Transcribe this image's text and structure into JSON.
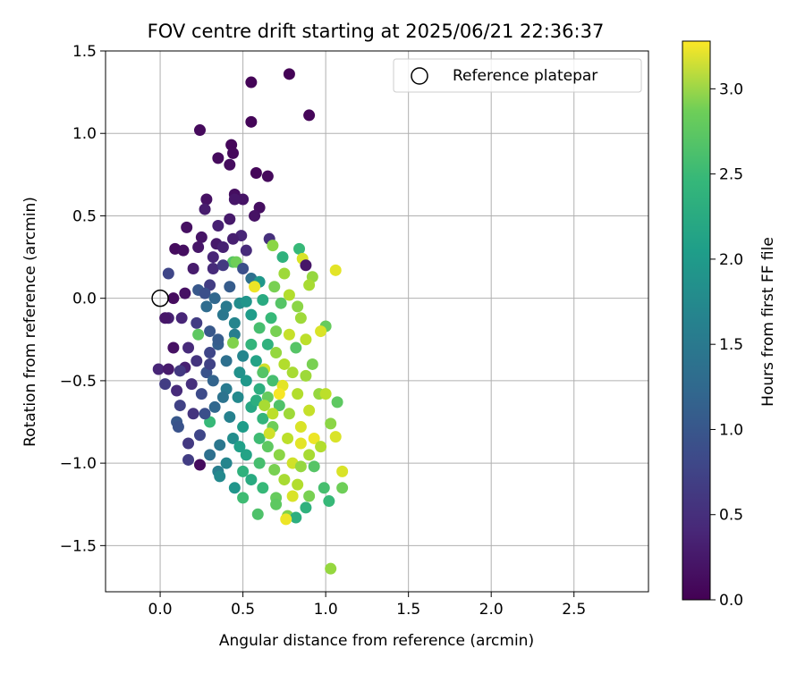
{
  "chart_data": {
    "type": "scatter",
    "title": "FOV centre drift starting at 2025/06/21 22:36:37",
    "xlabel": "Angular distance from reference (arcmin)",
    "ylabel": "Rotation from reference (arcmin)",
    "xlim": [
      -0.33,
      2.95
    ],
    "ylim": [
      -1.78,
      1.5
    ],
    "xticks": [
      0.0,
      0.5,
      1.0,
      1.5,
      2.0,
      2.5
    ],
    "xtick_labels": [
      "0.0",
      "0.5",
      "1.0",
      "1.5",
      "2.0",
      "2.5"
    ],
    "yticks": [
      1.5,
      1.0,
      0.5,
      0.0,
      -0.5,
      -1.0,
      -1.5
    ],
    "ytick_labels": [
      "1.5",
      "1.0",
      "0.5",
      "0.0",
      "−0.5",
      "−1.0",
      "−1.5"
    ],
    "grid": true,
    "legend": {
      "position": "top-right",
      "entries": [
        "Reference platepar"
      ]
    },
    "reference_point": {
      "name": "Reference platepar",
      "x": 0.0,
      "y": 0.0
    },
    "colorbar": {
      "label": "Hours from first FF file",
      "range": [
        0.0,
        3.28
      ],
      "ticks": [
        0.0,
        0.5,
        1.0,
        1.5,
        2.0,
        2.5,
        3.0
      ],
      "tick_labels": [
        "0.0",
        "0.5",
        "1.0",
        "1.5",
        "2.0",
        "2.5",
        "3.0"
      ],
      "colormap": "viridis"
    },
    "points": [
      {
        "x": 0.78,
        "y": 1.36,
        "t": 0.02
      },
      {
        "x": 0.55,
        "y": 1.31,
        "t": 0.03
      },
      {
        "x": 0.9,
        "y": 1.11,
        "t": 0.05
      },
      {
        "x": 0.55,
        "y": 1.07,
        "t": 0.04
      },
      {
        "x": 0.24,
        "y": 1.02,
        "t": 0.08
      },
      {
        "x": 0.43,
        "y": 0.93,
        "t": 0.06
      },
      {
        "x": 0.44,
        "y": 0.88,
        "t": 0.07
      },
      {
        "x": 0.35,
        "y": 0.85,
        "t": 0.09
      },
      {
        "x": 0.42,
        "y": 0.81,
        "t": 0.1
      },
      {
        "x": 0.58,
        "y": 0.76,
        "t": 0.06
      },
      {
        "x": 0.65,
        "y": 0.74,
        "t": 0.08
      },
      {
        "x": 0.45,
        "y": 0.63,
        "t": 0.12
      },
      {
        "x": 0.28,
        "y": 0.6,
        "t": 0.15
      },
      {
        "x": 0.5,
        "y": 0.6,
        "t": 0.18
      },
      {
        "x": 0.45,
        "y": 0.6,
        "t": 0.2
      },
      {
        "x": 0.6,
        "y": 0.55,
        "t": 0.12
      },
      {
        "x": 0.27,
        "y": 0.54,
        "t": 0.25
      },
      {
        "x": 0.57,
        "y": 0.5,
        "t": 0.16
      },
      {
        "x": 0.42,
        "y": 0.48,
        "t": 0.22
      },
      {
        "x": 0.16,
        "y": 0.43,
        "t": 0.14
      },
      {
        "x": 0.35,
        "y": 0.44,
        "t": 0.3
      },
      {
        "x": 0.25,
        "y": 0.37,
        "t": 0.18
      },
      {
        "x": 0.49,
        "y": 0.38,
        "t": 0.35
      },
      {
        "x": 0.44,
        "y": 0.36,
        "t": 0.28
      },
      {
        "x": 0.66,
        "y": 0.36,
        "t": 0.45
      },
      {
        "x": 0.34,
        "y": 0.33,
        "t": 0.22
      },
      {
        "x": 0.09,
        "y": 0.3,
        "t": 0.1
      },
      {
        "x": 0.14,
        "y": 0.29,
        "t": 0.12
      },
      {
        "x": 0.23,
        "y": 0.31,
        "t": 0.2
      },
      {
        "x": 0.38,
        "y": 0.31,
        "t": 0.3
      },
      {
        "x": 0.52,
        "y": 0.29,
        "t": 0.4
      },
      {
        "x": 0.32,
        "y": 0.25,
        "t": 0.35
      },
      {
        "x": 0.44,
        "y": 0.22,
        "t": 2.4
      },
      {
        "x": 0.46,
        "y": 0.22,
        "t": 2.55
      },
      {
        "x": 0.68,
        "y": 0.32,
        "t": 2.7
      },
      {
        "x": 0.84,
        "y": 0.3,
        "t": 2.2
      },
      {
        "x": 0.74,
        "y": 0.25,
        "t": 2.1
      },
      {
        "x": 0.86,
        "y": 0.24,
        "t": 3.1
      },
      {
        "x": 0.88,
        "y": 0.2,
        "t": 0.2
      },
      {
        "x": 0.2,
        "y": 0.18,
        "t": 0.25
      },
      {
        "x": 0.32,
        "y": 0.18,
        "t": 0.4
      },
      {
        "x": 0.38,
        "y": 0.2,
        "t": 0.55
      },
      {
        "x": 0.5,
        "y": 0.18,
        "t": 0.8
      },
      {
        "x": 0.55,
        "y": 0.12,
        "t": 1.2
      },
      {
        "x": 0.6,
        "y": 0.1,
        "t": 1.75
      },
      {
        "x": 0.75,
        "y": 0.15,
        "t": 2.8
      },
      {
        "x": 0.92,
        "y": 0.13,
        "t": 2.75
      },
      {
        "x": 1.06,
        "y": 0.17,
        "t": 3.15
      },
      {
        "x": 0.9,
        "y": 0.08,
        "t": 2.85
      },
      {
        "x": 0.05,
        "y": 0.15,
        "t": 0.7
      },
      {
        "x": 0.3,
        "y": 0.08,
        "t": 0.6
      },
      {
        "x": 0.42,
        "y": 0.07,
        "t": 0.95
      },
      {
        "x": 0.57,
        "y": 0.07,
        "t": 3.2
      },
      {
        "x": 0.69,
        "y": 0.07,
        "t": 2.6
      },
      {
        "x": 0.78,
        "y": 0.02,
        "t": 2.9
      },
      {
        "x": 0.05,
        "y": -0.12,
        "t": 0.3
      },
      {
        "x": 0.15,
        "y": 0.03,
        "t": 0.15
      },
      {
        "x": 0.23,
        "y": 0.05,
        "t": 0.9
      },
      {
        "x": 0.27,
        "y": 0.03,
        "t": 0.8
      },
      {
        "x": 0.33,
        "y": 0.0,
        "t": 1.1
      },
      {
        "x": 0.48,
        "y": -0.03,
        "t": 1.6
      },
      {
        "x": 0.62,
        "y": -0.01,
        "t": 2.0
      },
      {
        "x": 0.73,
        "y": -0.03,
        "t": 2.4
      },
      {
        "x": 0.83,
        "y": -0.05,
        "t": 2.7
      },
      {
        "x": 0.08,
        "y": 0.0,
        "t": 0.1
      },
      {
        "x": 0.03,
        "y": -0.12,
        "t": 0.2
      },
      {
        "x": 0.13,
        "y": -0.12,
        "t": 0.35
      },
      {
        "x": 0.22,
        "y": -0.15,
        "t": 0.6
      },
      {
        "x": 0.38,
        "y": -0.1,
        "t": 1.3
      },
      {
        "x": 0.55,
        "y": -0.1,
        "t": 1.8
      },
      {
        "x": 0.67,
        "y": -0.12,
        "t": 2.2
      },
      {
        "x": 0.85,
        "y": -0.12,
        "t": 2.8
      },
      {
        "x": 1.0,
        "y": -0.17,
        "t": 2.5
      },
      {
        "x": 0.97,
        "y": -0.2,
        "t": 3.1
      },
      {
        "x": 0.3,
        "y": -0.2,
        "t": 0.9
      },
      {
        "x": 0.45,
        "y": -0.22,
        "t": 1.4
      },
      {
        "x": 0.6,
        "y": -0.18,
        "t": 2.3
      },
      {
        "x": 0.7,
        "y": -0.2,
        "t": 2.6
      },
      {
        "x": 0.78,
        "y": -0.22,
        "t": 3.0
      },
      {
        "x": 0.88,
        "y": -0.25,
        "t": 2.95
      },
      {
        "x": 0.23,
        "y": -0.22,
        "t": 2.45
      },
      {
        "x": 0.17,
        "y": -0.3,
        "t": 0.4
      },
      {
        "x": 0.35,
        "y": -0.28,
        "t": 1.0
      },
      {
        "x": 0.44,
        "y": -0.27,
        "t": 2.65
      },
      {
        "x": 0.65,
        "y": -0.28,
        "t": 2.1
      },
      {
        "x": 0.82,
        "y": -0.3,
        "t": 2.4
      },
      {
        "x": 0.08,
        "y": -0.3,
        "t": 0.15
      },
      {
        "x": 0.3,
        "y": -0.33,
        "t": 0.7
      },
      {
        "x": 0.5,
        "y": -0.35,
        "t": 1.5
      },
      {
        "x": 0.7,
        "y": -0.33,
        "t": 2.75
      },
      {
        "x": 0.22,
        "y": -0.38,
        "t": 0.5
      },
      {
        "x": 0.4,
        "y": -0.38,
        "t": 1.2
      },
      {
        "x": 0.58,
        "y": -0.38,
        "t": 1.9
      },
      {
        "x": 0.75,
        "y": -0.4,
        "t": 2.9
      },
      {
        "x": 0.92,
        "y": -0.4,
        "t": 2.6
      },
      {
        "x": 0.15,
        "y": -0.42,
        "t": 0.3
      },
      {
        "x": 0.12,
        "y": -0.44,
        "t": 0.55
      },
      {
        "x": 0.28,
        "y": -0.45,
        "t": 0.85
      },
      {
        "x": 0.48,
        "y": -0.45,
        "t": 1.65
      },
      {
        "x": 0.63,
        "y": -0.43,
        "t": 3.05
      },
      {
        "x": 0.8,
        "y": -0.45,
        "t": 2.85
      },
      {
        "x": -0.01,
        "y": -0.43,
        "t": 0.35
      },
      {
        "x": 0.05,
        "y": -0.43,
        "t": 0.25
      },
      {
        "x": 0.32,
        "y": -0.5,
        "t": 1.05
      },
      {
        "x": 0.52,
        "y": -0.5,
        "t": 1.75
      },
      {
        "x": 0.68,
        "y": -0.5,
        "t": 2.3
      },
      {
        "x": 0.88,
        "y": -0.47,
        "t": 2.8
      },
      {
        "x": 0.19,
        "y": -0.52,
        "t": 0.45
      },
      {
        "x": 0.4,
        "y": -0.55,
        "t": 1.35
      },
      {
        "x": 0.6,
        "y": -0.55,
        "t": 2.05
      },
      {
        "x": 0.74,
        "y": -0.53,
        "t": 3.15
      },
      {
        "x": 0.03,
        "y": -0.52,
        "t": 0.6
      },
      {
        "x": 0.1,
        "y": -0.56,
        "t": 0.4
      },
      {
        "x": 0.25,
        "y": -0.58,
        "t": 0.75
      },
      {
        "x": 0.47,
        "y": -0.6,
        "t": 1.55
      },
      {
        "x": 0.65,
        "y": -0.6,
        "t": 2.5
      },
      {
        "x": 0.83,
        "y": -0.58,
        "t": 2.9
      },
      {
        "x": 0.96,
        "y": -0.58,
        "t": 2.75
      },
      {
        "x": 1.0,
        "y": -0.58,
        "t": 2.95
      },
      {
        "x": 1.07,
        "y": -0.63,
        "t": 2.45
      },
      {
        "x": 0.12,
        "y": -0.65,
        "t": 0.65
      },
      {
        "x": 0.33,
        "y": -0.66,
        "t": 1.1
      },
      {
        "x": 0.55,
        "y": -0.66,
        "t": 1.95
      },
      {
        "x": 0.72,
        "y": -0.65,
        "t": 2.35
      },
      {
        "x": 0.9,
        "y": -0.68,
        "t": 3.0
      },
      {
        "x": 0.2,
        "y": -0.7,
        "t": 0.5
      },
      {
        "x": 0.42,
        "y": -0.72,
        "t": 1.45
      },
      {
        "x": 0.62,
        "y": -0.73,
        "t": 2.15
      },
      {
        "x": 0.78,
        "y": -0.7,
        "t": 2.8
      },
      {
        "x": 0.1,
        "y": -0.75,
        "t": 0.9
      },
      {
        "x": 0.3,
        "y": -0.75,
        "t": 2.2
      },
      {
        "x": 0.5,
        "y": -0.78,
        "t": 1.8
      },
      {
        "x": 0.68,
        "y": -0.78,
        "t": 2.55
      },
      {
        "x": 0.85,
        "y": -0.78,
        "t": 3.1
      },
      {
        "x": 1.03,
        "y": -0.76,
        "t": 2.7
      },
      {
        "x": 0.11,
        "y": -0.78,
        "t": 0.85
      },
      {
        "x": 0.24,
        "y": -0.83,
        "t": 0.7
      },
      {
        "x": 0.44,
        "y": -0.85,
        "t": 1.6
      },
      {
        "x": 0.6,
        "y": -0.85,
        "t": 2.25
      },
      {
        "x": 0.77,
        "y": -0.85,
        "t": 2.95
      },
      {
        "x": 0.93,
        "y": -0.85,
        "t": 3.2
      },
      {
        "x": 1.06,
        "y": -0.84,
        "t": 3.1
      },
      {
        "x": 0.17,
        "y": -0.88,
        "t": 0.55
      },
      {
        "x": 0.36,
        "y": -0.89,
        "t": 1.3
      },
      {
        "x": 0.65,
        "y": -0.9,
        "t": 2.45
      },
      {
        "x": 0.85,
        "y": -0.88,
        "t": 3.15
      },
      {
        "x": 0.97,
        "y": -0.9,
        "t": 2.9
      },
      {
        "x": 0.3,
        "y": -0.95,
        "t": 1.2
      },
      {
        "x": 0.52,
        "y": -0.95,
        "t": 1.9
      },
      {
        "x": 0.72,
        "y": -0.95,
        "t": 2.7
      },
      {
        "x": 0.9,
        "y": -0.95,
        "t": 2.85
      },
      {
        "x": 0.17,
        "y": -0.98,
        "t": 0.6
      },
      {
        "x": 0.4,
        "y": -1.0,
        "t": 1.5
      },
      {
        "x": 0.6,
        "y": -1.0,
        "t": 2.3
      },
      {
        "x": 0.8,
        "y": -1.0,
        "t": 3.05
      },
      {
        "x": 0.24,
        "y": -1.01,
        "t": 0.1
      },
      {
        "x": 0.35,
        "y": -1.05,
        "t": 1.4
      },
      {
        "x": 0.5,
        "y": -1.05,
        "t": 2.1
      },
      {
        "x": 0.69,
        "y": -1.04,
        "t": 2.6
      },
      {
        "x": 0.85,
        "y": -1.02,
        "t": 2.75
      },
      {
        "x": 0.93,
        "y": -1.02,
        "t": 2.4
      },
      {
        "x": 1.1,
        "y": -1.05,
        "t": 3.1
      },
      {
        "x": 0.36,
        "y": -1.08,
        "t": 1.55
      },
      {
        "x": 0.55,
        "y": -1.1,
        "t": 2.0
      },
      {
        "x": 0.75,
        "y": -1.1,
        "t": 2.85
      },
      {
        "x": 1.1,
        "y": -1.15,
        "t": 2.55
      },
      {
        "x": 0.45,
        "y": -1.15,
        "t": 1.7
      },
      {
        "x": 0.62,
        "y": -1.15,
        "t": 2.2
      },
      {
        "x": 0.83,
        "y": -1.13,
        "t": 2.9
      },
      {
        "x": 0.99,
        "y": -1.15,
        "t": 2.3
      },
      {
        "x": 0.5,
        "y": -1.21,
        "t": 2.25
      },
      {
        "x": 0.7,
        "y": -1.21,
        "t": 2.5
      },
      {
        "x": 0.8,
        "y": -1.2,
        "t": 3.1
      },
      {
        "x": 0.9,
        "y": -1.2,
        "t": 2.6
      },
      {
        "x": 1.02,
        "y": -1.23,
        "t": 2.2
      },
      {
        "x": 0.7,
        "y": -1.25,
        "t": 2.45
      },
      {
        "x": 0.88,
        "y": -1.27,
        "t": 2.1
      },
      {
        "x": 0.59,
        "y": -1.31,
        "t": 2.35
      },
      {
        "x": 0.77,
        "y": -1.32,
        "t": 2.65
      },
      {
        "x": 0.82,
        "y": -1.33,
        "t": 2.05
      },
      {
        "x": 0.76,
        "y": -1.34,
        "t": 3.2
      },
      {
        "x": 1.03,
        "y": -1.64,
        "t": 2.75
      },
      {
        "x": 0.28,
        "y": -0.05,
        "t": 1.15
      },
      {
        "x": 0.4,
        "y": -0.05,
        "t": 1.35
      },
      {
        "x": 0.52,
        "y": -0.02,
        "t": 1.7
      },
      {
        "x": 0.45,
        "y": -0.15,
        "t": 1.5
      },
      {
        "x": 0.35,
        "y": -0.25,
        "t": 0.95
      },
      {
        "x": 0.55,
        "y": -0.28,
        "t": 2.15
      },
      {
        "x": 0.62,
        "y": -0.45,
        "t": 2.4
      },
      {
        "x": 0.38,
        "y": -0.6,
        "t": 1.25
      },
      {
        "x": 0.58,
        "y": -0.62,
        "t": 2.05
      },
      {
        "x": 0.27,
        "y": -0.7,
        "t": 0.8
      },
      {
        "x": 0.48,
        "y": -0.9,
        "t": 1.85
      },
      {
        "x": 0.68,
        "y": -0.7,
        "t": 2.95
      },
      {
        "x": 0.3,
        "y": -0.4,
        "t": 0.65
      },
      {
        "x": 0.72,
        "y": -0.58,
        "t": 3.25
      },
      {
        "x": 0.66,
        "y": -0.82,
        "t": 3.05
      },
      {
        "x": 0.63,
        "y": -0.65,
        "t": 2.85
      }
    ]
  }
}
